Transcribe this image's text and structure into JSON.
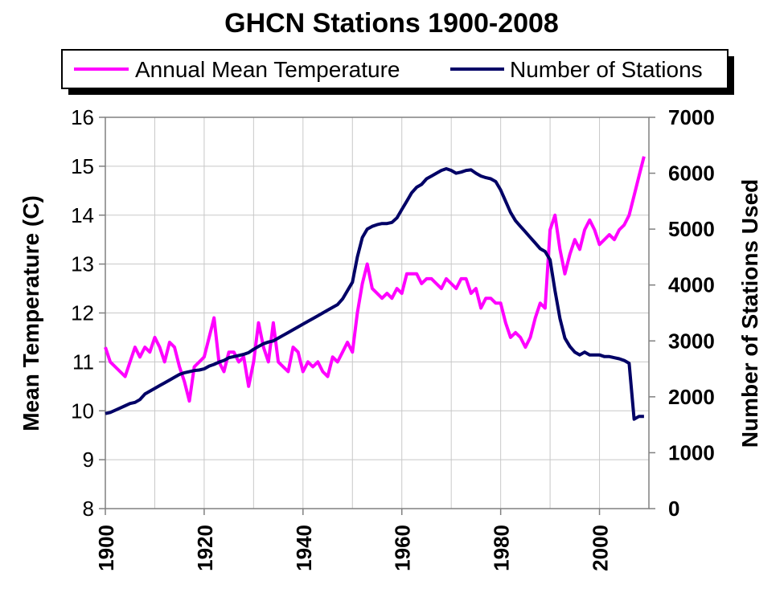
{
  "chart_data": {
    "type": "line",
    "title": "GHCN Stations 1900-2008",
    "xlabel": "",
    "ylabel_left": "Mean Temperature (C)",
    "ylabel_right": "Number of Stations Used",
    "xlim": [
      1900,
      2010
    ],
    "ylim_left": [
      8,
      16
    ],
    "ylim_right": [
      0,
      7000
    ],
    "grid": true,
    "legend_position": "top",
    "x_ticks": [
      "1900",
      "1920",
      "1940",
      "1960",
      "1980",
      "2000"
    ],
    "y_left_ticks": [
      "8",
      "9",
      "10",
      "11",
      "12",
      "13",
      "14",
      "15",
      "16"
    ],
    "y_right_ticks": [
      "0",
      "1000",
      "2000",
      "3000",
      "4000",
      "5000",
      "6000",
      "7000"
    ],
    "series": [
      {
        "name": "Annual Mean Temperature",
        "axis": "left",
        "color": "#ff00ff",
        "x": [
          1900,
          1901,
          1902,
          1903,
          1904,
          1905,
          1906,
          1907,
          1908,
          1909,
          1910,
          1911,
          1912,
          1913,
          1914,
          1915,
          1916,
          1917,
          1918,
          1919,
          1920,
          1921,
          1922,
          1923,
          1924,
          1925,
          1926,
          1927,
          1928,
          1929,
          1930,
          1931,
          1932,
          1933,
          1934,
          1935,
          1936,
          1937,
          1938,
          1939,
          1940,
          1941,
          1942,
          1943,
          1944,
          1945,
          1946,
          1947,
          1948,
          1949,
          1950,
          1951,
          1952,
          1953,
          1954,
          1955,
          1956,
          1957,
          1958,
          1959,
          1960,
          1961,
          1962,
          1963,
          1964,
          1965,
          1966,
          1967,
          1968,
          1969,
          1970,
          1971,
          1972,
          1973,
          1974,
          1975,
          1976,
          1977,
          1978,
          1979,
          1980,
          1981,
          1982,
          1983,
          1984,
          1985,
          1986,
          1987,
          1988,
          1989,
          1990,
          1991,
          1992,
          1993,
          1994,
          1995,
          1996,
          1997,
          1998,
          1999,
          2000,
          2001,
          2002,
          2003,
          2004,
          2005,
          2006,
          2007,
          2008,
          2009
        ],
        "values": [
          11.3,
          11.0,
          10.9,
          10.8,
          10.7,
          11.0,
          11.3,
          11.1,
          11.3,
          11.2,
          11.5,
          11.3,
          11.0,
          11.4,
          11.3,
          10.9,
          10.6,
          10.2,
          10.9,
          11.0,
          11.1,
          11.5,
          11.9,
          11.0,
          10.8,
          11.2,
          11.2,
          11.0,
          11.1,
          10.5,
          11.0,
          11.8,
          11.3,
          11.0,
          11.8,
          11.0,
          10.9,
          10.8,
          11.3,
          11.2,
          10.8,
          11.0,
          10.9,
          11.0,
          10.8,
          10.7,
          11.1,
          11.0,
          11.2,
          11.4,
          11.2,
          12.0,
          12.6,
          13.0,
          12.5,
          12.4,
          12.3,
          12.4,
          12.3,
          12.5,
          12.4,
          12.8,
          12.8,
          12.8,
          12.6,
          12.7,
          12.7,
          12.6,
          12.5,
          12.7,
          12.6,
          12.5,
          12.7,
          12.7,
          12.4,
          12.5,
          12.1,
          12.3,
          12.3,
          12.2,
          12.2,
          11.8,
          11.5,
          11.6,
          11.5,
          11.3,
          11.5,
          11.9,
          12.2,
          12.1,
          13.7,
          14.0,
          13.3,
          12.8,
          13.2,
          13.5,
          13.3,
          13.7,
          13.9,
          13.7,
          13.4,
          13.5,
          13.6,
          13.5,
          13.7,
          13.8,
          14.0,
          14.4,
          14.8,
          15.2
        ]
      },
      {
        "name": "Number of Stations",
        "axis": "right",
        "color": "#000066",
        "x": [
          1900,
          1901,
          1902,
          1903,
          1904,
          1905,
          1906,
          1907,
          1908,
          1909,
          1910,
          1911,
          1912,
          1913,
          1914,
          1915,
          1916,
          1917,
          1918,
          1919,
          1920,
          1921,
          1922,
          1923,
          1924,
          1925,
          1926,
          1927,
          1928,
          1929,
          1930,
          1931,
          1932,
          1933,
          1934,
          1935,
          1936,
          1937,
          1938,
          1939,
          1940,
          1941,
          1942,
          1943,
          1944,
          1945,
          1946,
          1947,
          1948,
          1949,
          1950,
          1951,
          1952,
          1953,
          1954,
          1955,
          1956,
          1957,
          1958,
          1959,
          1960,
          1961,
          1962,
          1963,
          1964,
          1965,
          1966,
          1967,
          1968,
          1969,
          1970,
          1971,
          1972,
          1973,
          1974,
          1975,
          1976,
          1977,
          1978,
          1979,
          1980,
          1981,
          1982,
          1983,
          1984,
          1985,
          1986,
          1987,
          1988,
          1989,
          1990,
          1991,
          1992,
          1993,
          1994,
          1995,
          1996,
          1997,
          1998,
          1999,
          2000,
          2001,
          2002,
          2003,
          2004,
          2005,
          2006,
          2007,
          2008,
          2009
        ],
        "values": [
          1700,
          1720,
          1760,
          1800,
          1840,
          1880,
          1900,
          1950,
          2050,
          2100,
          2150,
          2200,
          2250,
          2300,
          2350,
          2400,
          2430,
          2450,
          2470,
          2480,
          2500,
          2550,
          2580,
          2620,
          2650,
          2700,
          2720,
          2740,
          2760,
          2790,
          2850,
          2900,
          2950,
          2980,
          3000,
          3050,
          3100,
          3150,
          3200,
          3250,
          3300,
          3350,
          3400,
          3450,
          3500,
          3550,
          3600,
          3650,
          3750,
          3900,
          4050,
          4500,
          4850,
          5000,
          5050,
          5080,
          5100,
          5100,
          5120,
          5200,
          5350,
          5500,
          5650,
          5750,
          5800,
          5900,
          5950,
          6000,
          6050,
          6080,
          6050,
          6000,
          6020,
          6050,
          6060,
          6000,
          5950,
          5920,
          5900,
          5850,
          5700,
          5500,
          5300,
          5150,
          5050,
          4950,
          4850,
          4750,
          4650,
          4600,
          4450,
          3900,
          3400,
          3050,
          2900,
          2800,
          2750,
          2800,
          2750,
          2750,
          2750,
          2720,
          2720,
          2700,
          2680,
          2650,
          2600,
          1600,
          1650,
          1650
        ]
      }
    ]
  }
}
